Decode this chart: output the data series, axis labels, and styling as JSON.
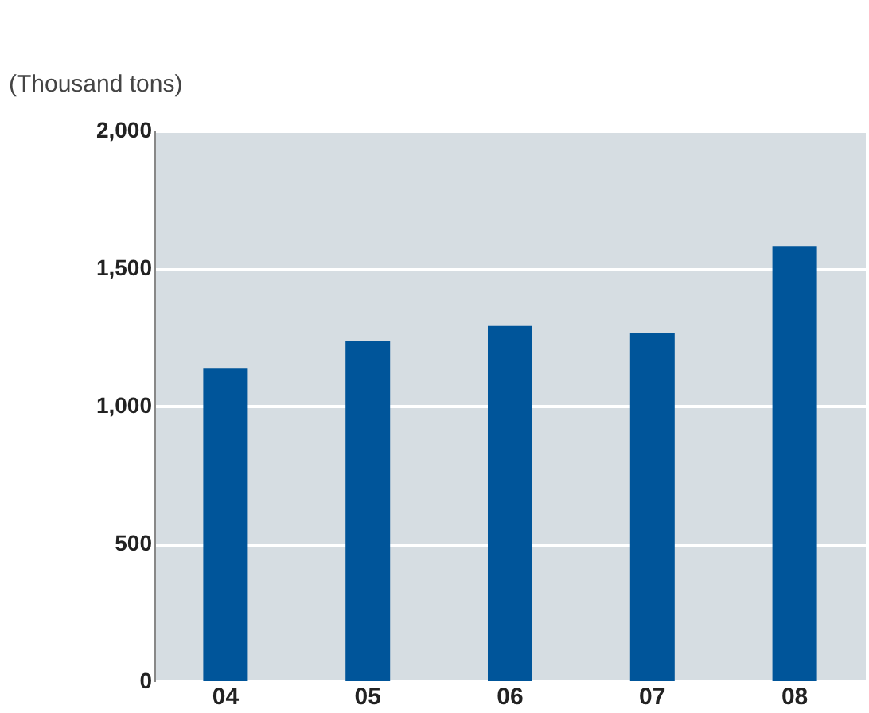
{
  "chart_data": {
    "type": "bar",
    "ylabel": "(Thousand tons)",
    "categories": [
      "04",
      "05",
      "06",
      "07",
      "08"
    ],
    "values": [
      1135,
      1235,
      1290,
      1265,
      1580
    ],
    "color": "#00559a",
    "ylim": [
      0,
      2000
    ],
    "yticks": [
      0,
      500,
      {
        "value": 1000,
        "label": "1,000"
      },
      {
        "value": 1500,
        "label": "1,500"
      },
      {
        "value": 2000,
        "label": "2,000"
      }
    ],
    "grid": "y"
  }
}
